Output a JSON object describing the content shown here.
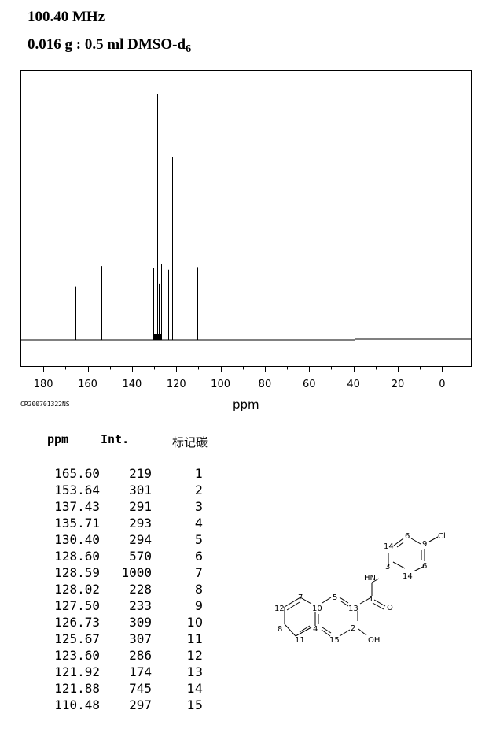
{
  "header": {
    "frequency": "100.40 MHz",
    "sample_prefix": "0.016 g : 0.5 ml DMSO-d",
    "sample_subscript": "6"
  },
  "spectrum": {
    "code": "CR200701322NS",
    "xlabel": "ppm"
  },
  "chart_data": {
    "type": "bar",
    "title": "",
    "xlabel": "ppm",
    "ylabel": "",
    "x_reversed": true,
    "xlim": [
      190,
      -13
    ],
    "ylim": [
      0,
      1000
    ],
    "xticks": [
      180,
      160,
      140,
      120,
      100,
      80,
      60,
      40,
      20,
      0
    ],
    "xtick_labels": [
      "180",
      "160",
      "140",
      "120",
      "100",
      "80",
      "60",
      "40",
      "20",
      "0"
    ],
    "peaks": [
      {
        "ppm": 165.6,
        "int": 219
      },
      {
        "ppm": 153.64,
        "int": 301
      },
      {
        "ppm": 137.43,
        "int": 291
      },
      {
        "ppm": 135.71,
        "int": 293
      },
      {
        "ppm": 130.4,
        "int": 294
      },
      {
        "ppm": 128.6,
        "int": 570
      },
      {
        "ppm": 128.59,
        "int": 1000
      },
      {
        "ppm": 128.02,
        "int": 228
      },
      {
        "ppm": 127.5,
        "int": 233
      },
      {
        "ppm": 126.73,
        "int": 309
      },
      {
        "ppm": 125.67,
        "int": 307
      },
      {
        "ppm": 123.6,
        "int": 286
      },
      {
        "ppm": 121.92,
        "int": 174
      },
      {
        "ppm": 121.88,
        "int": 745
      },
      {
        "ppm": 110.48,
        "int": 297
      }
    ]
  },
  "table": {
    "headers": {
      "ppm": "ppm",
      "int": "Int.",
      "carbon": "标记碳"
    },
    "rows": [
      {
        "ppm": "165.60",
        "int": "219",
        "label": "1"
      },
      {
        "ppm": "153.64",
        "int": "301",
        "label": "2"
      },
      {
        "ppm": "137.43",
        "int": "291",
        "label": "3"
      },
      {
        "ppm": "135.71",
        "int": "293",
        "label": "4"
      },
      {
        "ppm": "130.40",
        "int": "294",
        "label": "5"
      },
      {
        "ppm": "128.60",
        "int": "570",
        "label": "6"
      },
      {
        "ppm": "128.59",
        "int": "1000",
        "label": "7"
      },
      {
        "ppm": "128.02",
        "int": "228",
        "label": "8"
      },
      {
        "ppm": "127.50",
        "int": "233",
        "label": "9"
      },
      {
        "ppm": "126.73",
        "int": "309",
        "label": "10"
      },
      {
        "ppm": "125.67",
        "int": "307",
        "label": "11"
      },
      {
        "ppm": "123.60",
        "int": "286",
        "label": "12"
      },
      {
        "ppm": "121.92",
        "int": "174",
        "label": "13"
      },
      {
        "ppm": "121.88",
        "int": "745",
        "label": "14"
      },
      {
        "ppm": "110.48",
        "int": "297",
        "label": "15"
      }
    ]
  },
  "molecule": {
    "atoms": {
      "cl": "Cl",
      "hn": "HN",
      "o": "O",
      "oh": "OH",
      "n1": "1",
      "n2": "2",
      "n3": "3",
      "n4": "4",
      "n5": "5",
      "n6a": "6",
      "n6b": "6",
      "n7": "7",
      "n8": "8",
      "n9": "9",
      "n10": "10",
      "n11": "11",
      "n12": "12",
      "n13": "13",
      "n14a": "14",
      "n14b": "14",
      "n15": "15"
    }
  }
}
